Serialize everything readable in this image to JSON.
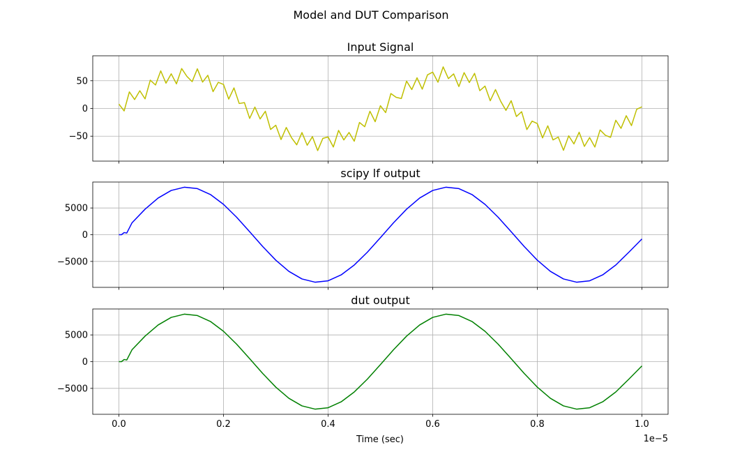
{
  "chart_data": {
    "type": "line",
    "title": "Model and DUT Comparison",
    "xlabel": "Time (sec)",
    "x_offset_label": "1e−5",
    "xlim": [
      -0.05,
      1.05
    ],
    "x_ticks": [
      0.0,
      0.2,
      0.4,
      0.6,
      0.8,
      1.0
    ],
    "x_tick_labels": [
      "0.0",
      "0.2",
      "0.4",
      "0.6",
      "0.8",
      "1.0"
    ],
    "grid": true,
    "subplots": [
      {
        "title": "Input Signal",
        "color": "#bfbf00",
        "ylim": [
          -95,
          95
        ],
        "y_ticks": [
          50,
          0,
          -50
        ],
        "y_tick_labels": [
          "50",
          "0",
          "−50"
        ],
        "x_step": 0.01,
        "y": [
          8,
          -4.5,
          29.9,
          16.1,
          31.9,
          17.3,
          51.1,
          42.3,
          67.8,
          45.6,
          62.5,
          44.4,
          72,
          57.9,
          48.4,
          71.5,
          47.6,
          59.8,
          30.3,
          47.1,
          43.3,
          16.9,
          37.1,
          8.9,
          10.5,
          -18,
          2.5,
          -18.9,
          -5.1,
          -37.9,
          -30.3,
          -56.1,
          -34.3,
          -52.8,
          -65.6,
          -43.5,
          -66.4,
          -50.9,
          -76,
          -53.9,
          -51.4,
          -69.5,
          -39.6,
          -56.8,
          -43.3,
          -59.1,
          -25.3,
          -32.9,
          -5.1,
          -23.9,
          5,
          -7.5,
          26.9,
          20.1,
          17.9,
          49.3,
          34.1,
          55.3,
          34.8,
          60.6,
          65.5,
          47.4,
          75,
          53.9,
          62.4,
          39.5,
          64.6,
          46.8,
          63.3,
          32.1,
          40.3,
          13.9,
          34.1,
          12.9,
          -3.5,
          14,
          -14.5,
          -5.9,
          -38.1,
          -22.9,
          -27.3,
          -53.1,
          -31.3,
          -56.8,
          -51.6,
          -75.5,
          -49.4,
          -64,
          -42.9,
          -68.4,
          -52.5,
          -69.6,
          -38.8,
          -48.3,
          -52.1,
          -21.3,
          -35.9,
          -13.1,
          -30.9,
          -1.5,
          3
        ]
      },
      {
        "title": "scipy lf output",
        "color": "#0000ff",
        "ylim": [
          -9850,
          9850
        ],
        "y_ticks": [
          5000,
          0,
          -5000
        ],
        "y_tick_labels": [
          "5000",
          "0",
          "−5000"
        ],
        "x": [
          0,
          0.005,
          0.01,
          0.015,
          0.025,
          0.05,
          0.075,
          0.1,
          0.125,
          0.15,
          0.175,
          0.2,
          0.225,
          0.25,
          0.275,
          0.3,
          0.325,
          0.35,
          0.375,
          0.4,
          0.425,
          0.45,
          0.475,
          0.5,
          0.525,
          0.55,
          0.575,
          0.6,
          0.625,
          0.65,
          0.675,
          0.7,
          0.725,
          0.75,
          0.775,
          0.8,
          0.825,
          0.85,
          0.875,
          0.9,
          0.925,
          0.95,
          0.975,
          1.0
        ],
        "y": [
          0,
          0,
          400,
          300,
          2213,
          4769,
          6858,
          8275,
          8882,
          8621,
          7514,
          5673,
          3276,
          559,
          -2213,
          -4769,
          -6858,
          -8275,
          -8882,
          -8621,
          -7514,
          -5673,
          -3276,
          -559,
          2213,
          4769,
          6858,
          8275,
          8882,
          8621,
          7514,
          5673,
          3276,
          559,
          -2213,
          -4769,
          -6858,
          -8275,
          -8882,
          -8621,
          -7514,
          -5673,
          -3276,
          -800
        ]
      },
      {
        "title": "dut output",
        "color": "#008000",
        "ylim": [
          -9850,
          9850
        ],
        "y_ticks": [
          5000,
          0,
          -5000
        ],
        "y_tick_labels": [
          "5000",
          "0",
          "−5000"
        ],
        "x": [
          0,
          0.005,
          0.01,
          0.015,
          0.025,
          0.05,
          0.075,
          0.1,
          0.125,
          0.15,
          0.175,
          0.2,
          0.225,
          0.25,
          0.275,
          0.3,
          0.325,
          0.35,
          0.375,
          0.4,
          0.425,
          0.45,
          0.475,
          0.5,
          0.525,
          0.55,
          0.575,
          0.6,
          0.625,
          0.65,
          0.675,
          0.7,
          0.725,
          0.75,
          0.775,
          0.8,
          0.825,
          0.85,
          0.875,
          0.9,
          0.925,
          0.95,
          0.975,
          1.0
        ],
        "y": [
          0,
          0,
          400,
          300,
          2213,
          4769,
          6858,
          8275,
          8882,
          8621,
          7514,
          5673,
          3276,
          559,
          -2213,
          -4769,
          -6858,
          -8275,
          -8882,
          -8621,
          -7514,
          -5673,
          -3276,
          -559,
          2213,
          4769,
          6858,
          8275,
          8882,
          8621,
          7514,
          5673,
          3276,
          559,
          -2213,
          -4769,
          -6858,
          -8275,
          -8882,
          -8621,
          -7514,
          -5673,
          -3276,
          -800
        ]
      }
    ]
  }
}
